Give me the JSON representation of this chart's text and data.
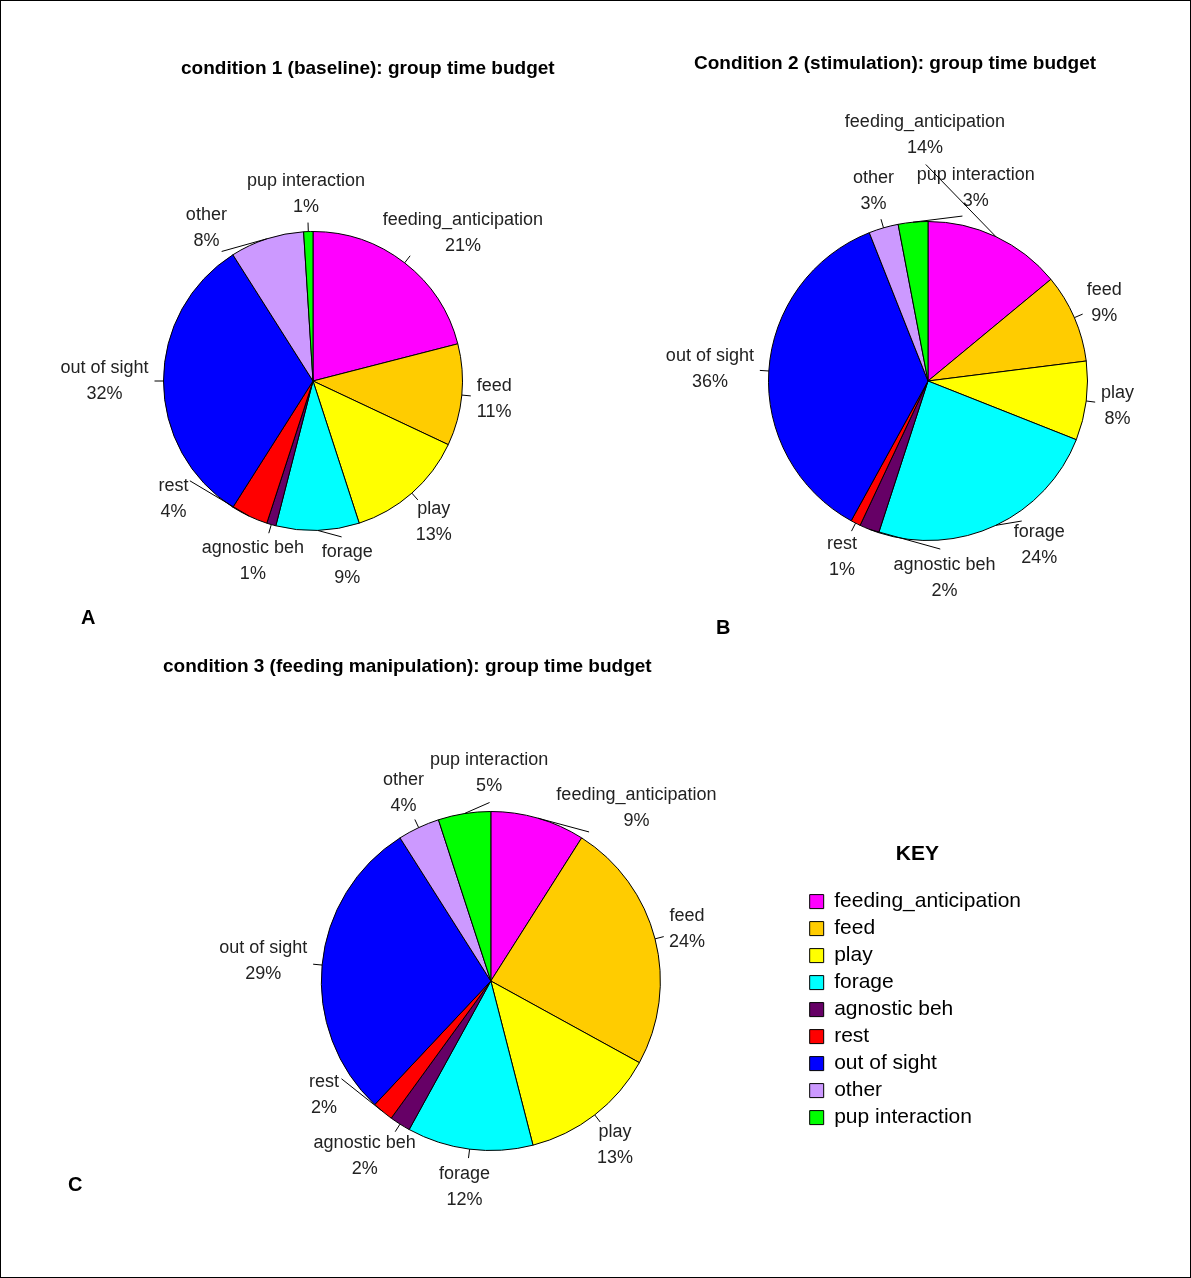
{
  "chart_data": [
    {
      "type": "pie",
      "title": "condition 1 (baseline): group time budget",
      "categories": [
        "feeding_anticipation",
        "feed",
        "play",
        "forage",
        "agnostic beh",
        "rest",
        "out of sight",
        "other",
        "pup interaction"
      ],
      "values": [
        21,
        11,
        13,
        9,
        1,
        4,
        32,
        8,
        1
      ],
      "value_labels": [
        "21%",
        "11%",
        "13%",
        "9%",
        "1%",
        "4%",
        "32%",
        "8%",
        "1%"
      ],
      "colors": [
        "#ff00ff",
        "#ffcc00",
        "#ffff00",
        "#00ffff",
        "#660066",
        "#ff0000",
        "#0000ff",
        "#cc99ff",
        "#00ff00"
      ],
      "annotations": [
        "A"
      ],
      "legend": false
    },
    {
      "type": "pie",
      "title": "Condition 2 (stimulation): group time budget",
      "categories": [
        "feeding_anticipation",
        "feed",
        "play",
        "forage",
        "agnostic beh",
        "rest",
        "out of sight",
        "other",
        "pup interaction"
      ],
      "values": [
        14,
        9,
        8,
        24,
        2,
        1,
        36,
        3,
        3
      ],
      "value_labels": [
        "14%",
        "9%",
        "8%",
        "24%",
        "2%",
        "1%",
        "36%",
        "3%",
        "3%"
      ],
      "colors": [
        "#ff00ff",
        "#ffcc00",
        "#ffff00",
        "#00ffff",
        "#660066",
        "#ff0000",
        "#0000ff",
        "#cc99ff",
        "#00ff00"
      ],
      "annotations": [
        "B"
      ],
      "legend": false
    },
    {
      "type": "pie",
      "title": "condition 3 (feeding manipulation): group time budget",
      "categories": [
        "feeding_anticipation",
        "feed",
        "play",
        "forage",
        "agnostic beh",
        "rest",
        "out of sight",
        "other",
        "pup interaction"
      ],
      "values": [
        9,
        24,
        13,
        12,
        2,
        2,
        29,
        4,
        5
      ],
      "value_labels": [
        "9%",
        "24%",
        "13%",
        "12%",
        "2%",
        "2%",
        "29%",
        "4%",
        "5%"
      ],
      "colors": [
        "#ff00ff",
        "#ffcc00",
        "#ffff00",
        "#00ffff",
        "#660066",
        "#ff0000",
        "#0000ff",
        "#cc99ff",
        "#00ff00"
      ],
      "annotations": [
        "C"
      ],
      "legend": "right",
      "legend_title": "KEY"
    }
  ]
}
